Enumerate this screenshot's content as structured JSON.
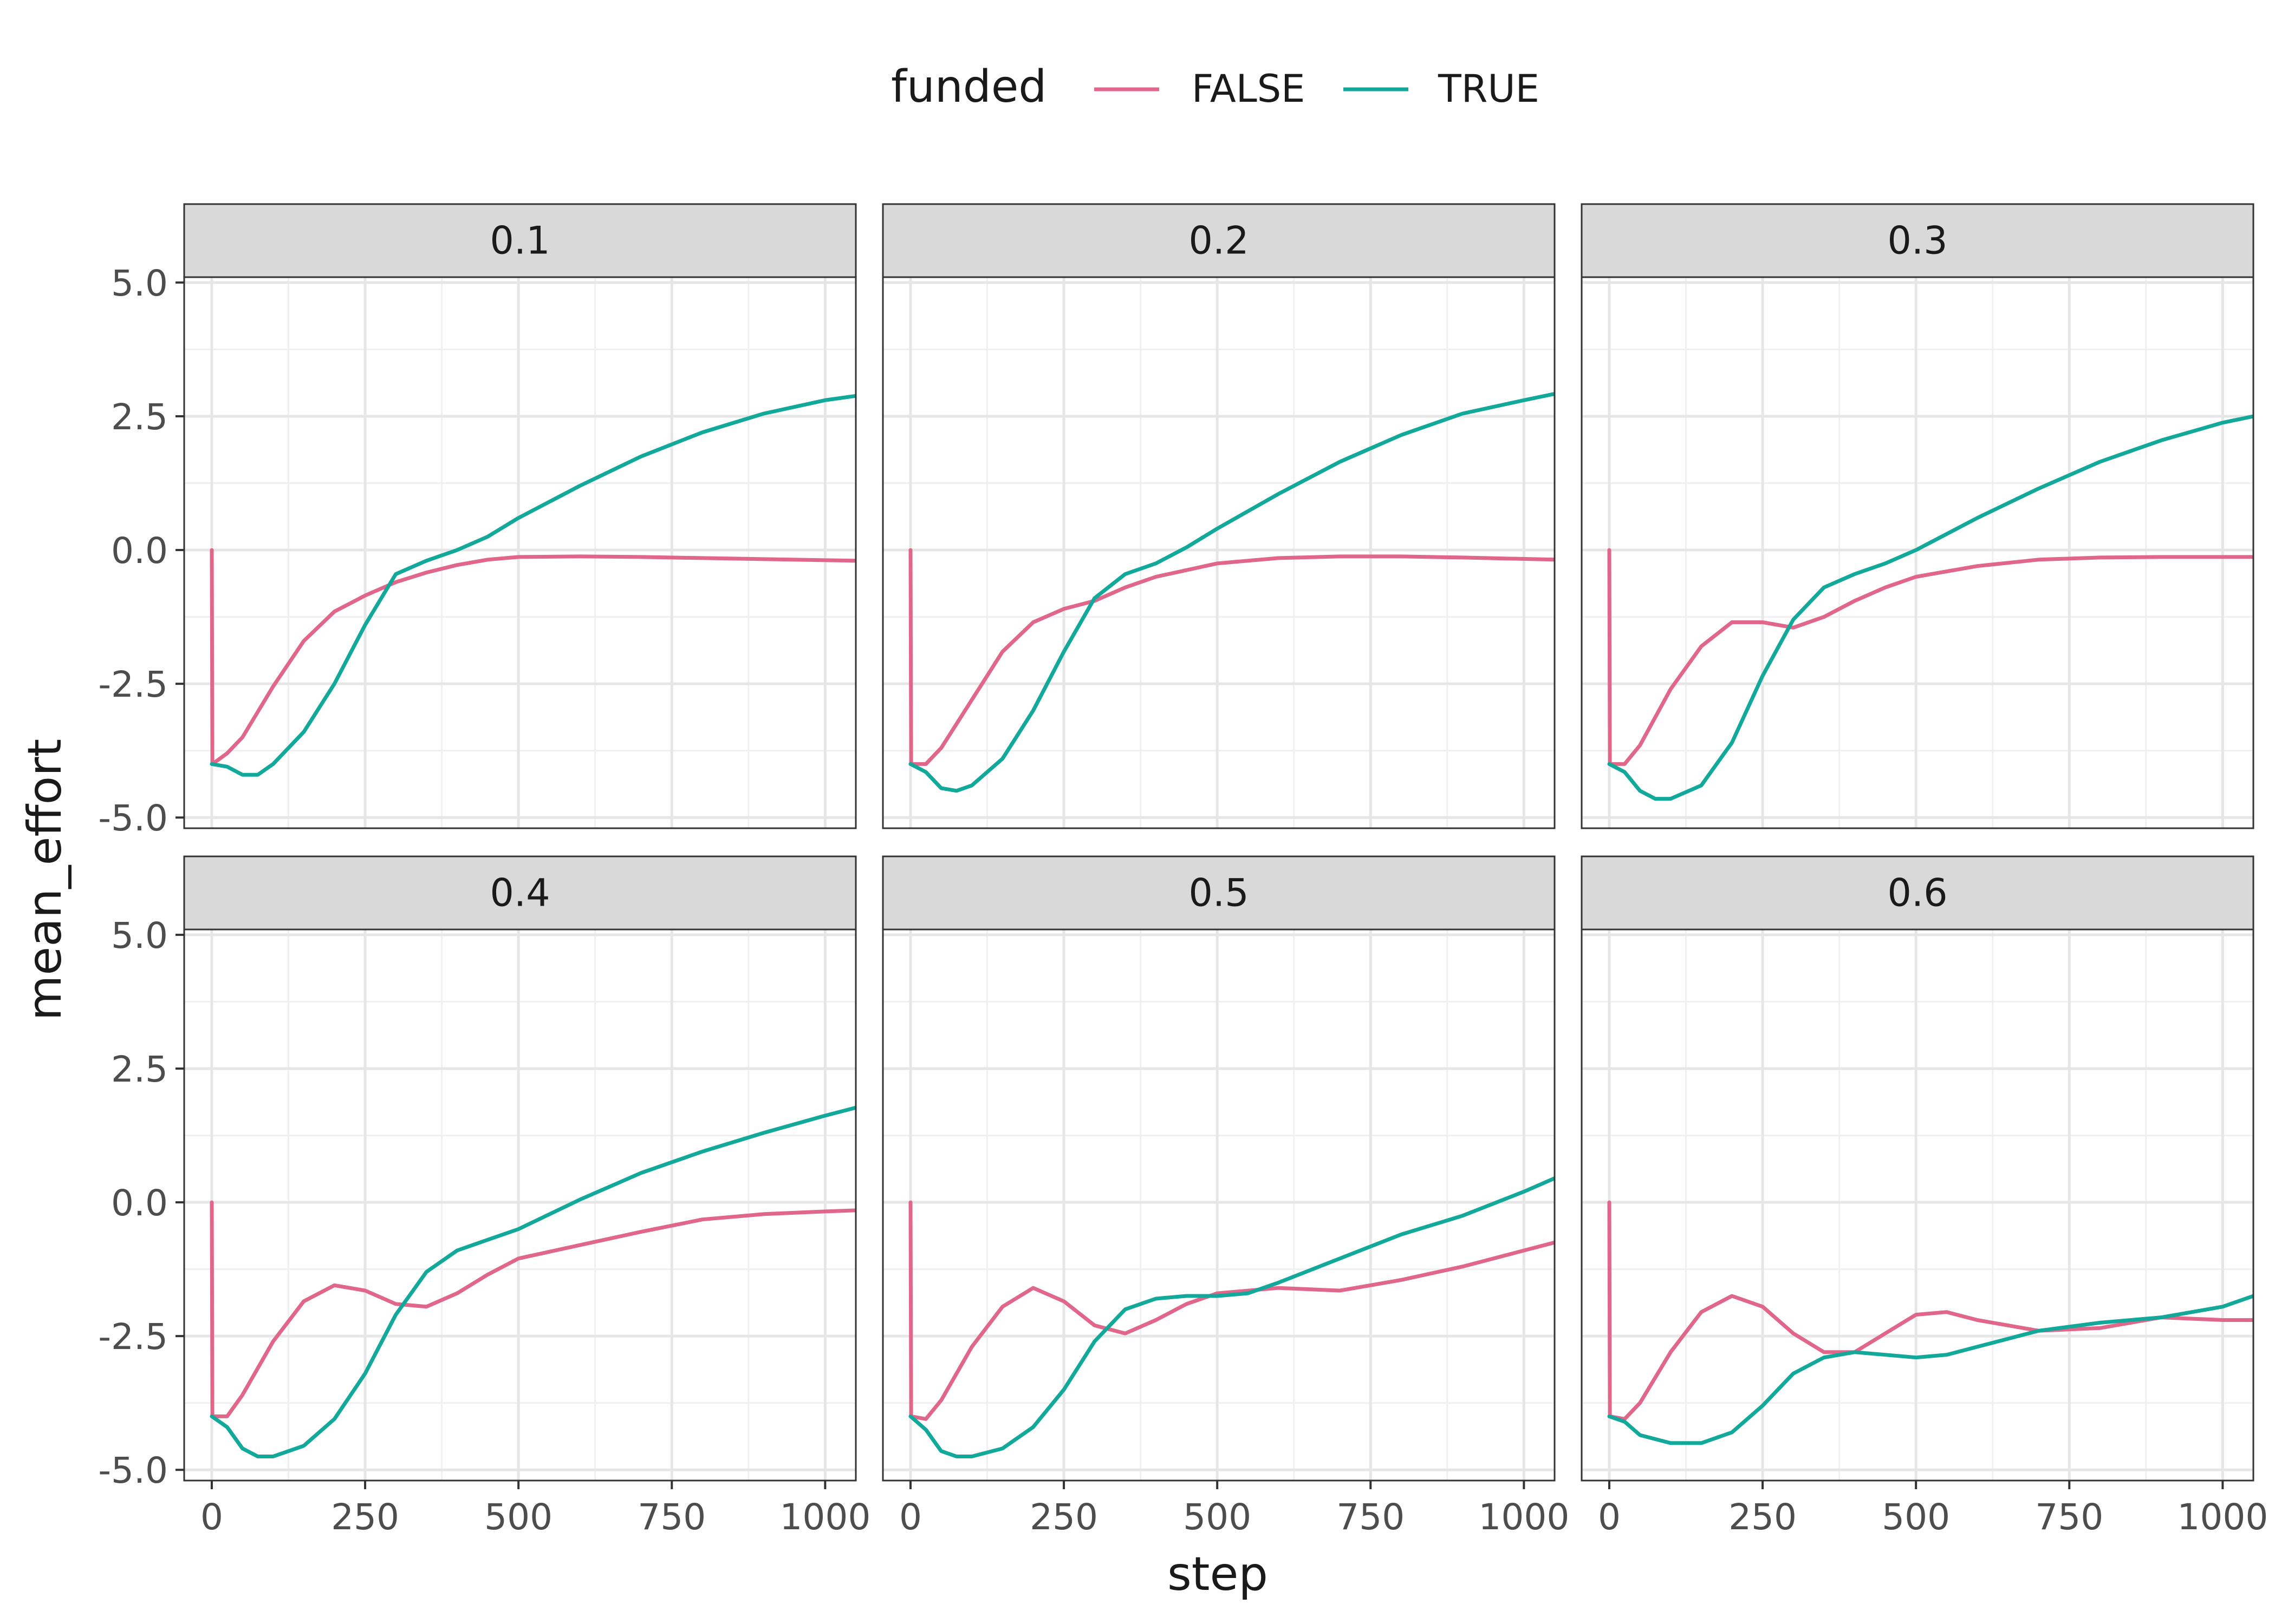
{
  "chart_data": {
    "type": "line",
    "facet_layout": "2 rows x 3 columns",
    "xlabel": "step",
    "ylabel": "mean_effort",
    "xlim": [
      -45,
      1050
    ],
    "ylim": [
      -5.2,
      5.1
    ],
    "x_ticks": [
      0,
      250,
      500,
      750,
      1000
    ],
    "x_tick_labels": [
      "0",
      "250",
      "500",
      "750",
      "1000"
    ],
    "y_ticks": [
      -5.0,
      -2.5,
      0.0,
      2.5,
      5.0
    ],
    "y_tick_labels": [
      "-5.0",
      "-2.5",
      "0.0",
      "2.5",
      "5.0"
    ],
    "grid": true,
    "legend": {
      "title": "funded",
      "position": "top",
      "entries": [
        {
          "label": "FALSE",
          "color": "#E0668A"
        },
        {
          "label": "TRUE",
          "color": "#12A99A"
        }
      ]
    },
    "facets": [
      {
        "label": "0.1",
        "series": [
          {
            "name": "FALSE",
            "color": "#E0668A",
            "points": [
              [
                0,
                0
              ],
              [
                1,
                -4.0
              ],
              [
                25,
                -3.8
              ],
              [
                50,
                -3.5
              ],
              [
                100,
                -2.55
              ],
              [
                150,
                -1.7
              ],
              [
                200,
                -1.15
              ],
              [
                250,
                -0.85
              ],
              [
                300,
                -0.6
              ],
              [
                350,
                -0.42
              ],
              [
                400,
                -0.28
              ],
              [
                450,
                -0.18
              ],
              [
                500,
                -0.13
              ],
              [
                600,
                -0.12
              ],
              [
                700,
                -0.13
              ],
              [
                800,
                -0.15
              ],
              [
                900,
                -0.17
              ],
              [
                1050,
                -0.2
              ]
            ]
          },
          {
            "name": "TRUE",
            "color": "#12A99A",
            "points": [
              [
                0,
                -4.0
              ],
              [
                25,
                -4.05
              ],
              [
                50,
                -4.2
              ],
              [
                75,
                -4.2
              ],
              [
                100,
                -4.0
              ],
              [
                150,
                -3.4
              ],
              [
                200,
                -2.5
              ],
              [
                250,
                -1.4
              ],
              [
                300,
                -0.45
              ],
              [
                350,
                -0.2
              ],
              [
                400,
                0.0
              ],
              [
                450,
                0.25
              ],
              [
                500,
                0.6
              ],
              [
                600,
                1.2
              ],
              [
                700,
                1.75
              ],
              [
                800,
                2.2
              ],
              [
                900,
                2.55
              ],
              [
                1000,
                2.8
              ],
              [
                1050,
                2.88
              ]
            ]
          }
        ]
      },
      {
        "label": "0.2",
        "series": [
          {
            "name": "FALSE",
            "color": "#E0668A",
            "points": [
              [
                0,
                0
              ],
              [
                1,
                -4.0
              ],
              [
                25,
                -4.0
              ],
              [
                50,
                -3.7
              ],
              [
                100,
                -2.8
              ],
              [
                150,
                -1.9
              ],
              [
                200,
                -1.35
              ],
              [
                250,
                -1.1
              ],
              [
                300,
                -0.95
              ],
              [
                350,
                -0.7
              ],
              [
                400,
                -0.5
              ],
              [
                500,
                -0.25
              ],
              [
                600,
                -0.15
              ],
              [
                700,
                -0.12
              ],
              [
                800,
                -0.12
              ],
              [
                900,
                -0.14
              ],
              [
                1050,
                -0.18
              ]
            ]
          },
          {
            "name": "TRUE",
            "color": "#12A99A",
            "points": [
              [
                0,
                -4.0
              ],
              [
                25,
                -4.15
              ],
              [
                50,
                -4.45
              ],
              [
                75,
                -4.5
              ],
              [
                100,
                -4.4
              ],
              [
                150,
                -3.9
              ],
              [
                200,
                -3.0
              ],
              [
                250,
                -1.9
              ],
              [
                300,
                -0.9
              ],
              [
                350,
                -0.45
              ],
              [
                400,
                -0.25
              ],
              [
                450,
                0.05
              ],
              [
                500,
                0.4
              ],
              [
                600,
                1.05
              ],
              [
                700,
                1.65
              ],
              [
                800,
                2.15
              ],
              [
                900,
                2.55
              ],
              [
                1000,
                2.8
              ],
              [
                1050,
                2.92
              ]
            ]
          }
        ]
      },
      {
        "label": "0.3",
        "series": [
          {
            "name": "FALSE",
            "color": "#E0668A",
            "points": [
              [
                0,
                0
              ],
              [
                1,
                -4.0
              ],
              [
                25,
                -4.0
              ],
              [
                50,
                -3.65
              ],
              [
                100,
                -2.6
              ],
              [
                150,
                -1.8
              ],
              [
                200,
                -1.35
              ],
              [
                250,
                -1.35
              ],
              [
                300,
                -1.45
              ],
              [
                350,
                -1.25
              ],
              [
                400,
                -0.95
              ],
              [
                450,
                -0.7
              ],
              [
                500,
                -0.5
              ],
              [
                600,
                -0.3
              ],
              [
                700,
                -0.18
              ],
              [
                800,
                -0.14
              ],
              [
                900,
                -0.13
              ],
              [
                1050,
                -0.13
              ]
            ]
          },
          {
            "name": "TRUE",
            "color": "#12A99A",
            "points": [
              [
                0,
                -4.0
              ],
              [
                25,
                -4.15
              ],
              [
                50,
                -4.5
              ],
              [
                75,
                -4.65
              ],
              [
                100,
                -4.65
              ],
              [
                150,
                -4.4
              ],
              [
                200,
                -3.6
              ],
              [
                250,
                -2.35
              ],
              [
                300,
                -1.3
              ],
              [
                350,
                -0.7
              ],
              [
                400,
                -0.45
              ],
              [
                450,
                -0.25
              ],
              [
                500,
                0.0
              ],
              [
                600,
                0.6
              ],
              [
                700,
                1.15
              ],
              [
                800,
                1.65
              ],
              [
                900,
                2.05
              ],
              [
                1000,
                2.38
              ],
              [
                1050,
                2.5
              ]
            ]
          }
        ]
      },
      {
        "label": "0.4",
        "series": [
          {
            "name": "FALSE",
            "color": "#E0668A",
            "points": [
              [
                0,
                0
              ],
              [
                1,
                -4.0
              ],
              [
                25,
                -4.0
              ],
              [
                50,
                -3.6
              ],
              [
                100,
                -2.6
              ],
              [
                150,
                -1.85
              ],
              [
                200,
                -1.55
              ],
              [
                250,
                -1.65
              ],
              [
                300,
                -1.9
              ],
              [
                350,
                -1.95
              ],
              [
                400,
                -1.7
              ],
              [
                450,
                -1.35
              ],
              [
                500,
                -1.05
              ],
              [
                600,
                -0.8
              ],
              [
                700,
                -0.55
              ],
              [
                800,
                -0.32
              ],
              [
                900,
                -0.22
              ],
              [
                1000,
                -0.17
              ],
              [
                1050,
                -0.15
              ]
            ]
          },
          {
            "name": "TRUE",
            "color": "#12A99A",
            "points": [
              [
                0,
                -4.0
              ],
              [
                25,
                -4.2
              ],
              [
                50,
                -4.6
              ],
              [
                75,
                -4.75
              ],
              [
                100,
                -4.75
              ],
              [
                150,
                -4.55
              ],
              [
                200,
                -4.05
              ],
              [
                250,
                -3.2
              ],
              [
                300,
                -2.1
              ],
              [
                350,
                -1.3
              ],
              [
                400,
                -0.9
              ],
              [
                450,
                -0.7
              ],
              [
                500,
                -0.5
              ],
              [
                600,
                0.05
              ],
              [
                700,
                0.55
              ],
              [
                800,
                0.95
              ],
              [
                900,
                1.3
              ],
              [
                1000,
                1.62
              ],
              [
                1050,
                1.77
              ]
            ]
          }
        ]
      },
      {
        "label": "0.5",
        "series": [
          {
            "name": "FALSE",
            "color": "#E0668A",
            "points": [
              [
                0,
                0
              ],
              [
                1,
                -4.0
              ],
              [
                25,
                -4.05
              ],
              [
                50,
                -3.7
              ],
              [
                100,
                -2.7
              ],
              [
                150,
                -1.95
              ],
              [
                200,
                -1.6
              ],
              [
                250,
                -1.85
              ],
              [
                300,
                -2.3
              ],
              [
                350,
                -2.45
              ],
              [
                400,
                -2.2
              ],
              [
                450,
                -1.9
              ],
              [
                500,
                -1.7
              ],
              [
                600,
                -1.6
              ],
              [
                700,
                -1.65
              ],
              [
                800,
                -1.45
              ],
              [
                900,
                -1.2
              ],
              [
                1000,
                -0.9
              ],
              [
                1050,
                -0.75
              ]
            ]
          },
          {
            "name": "TRUE",
            "color": "#12A99A",
            "points": [
              [
                0,
                -4.0
              ],
              [
                25,
                -4.25
              ],
              [
                50,
                -4.65
              ],
              [
                75,
                -4.75
              ],
              [
                100,
                -4.75
              ],
              [
                150,
                -4.6
              ],
              [
                200,
                -4.2
              ],
              [
                250,
                -3.5
              ],
              [
                300,
                -2.6
              ],
              [
                350,
                -2.0
              ],
              [
                400,
                -1.8
              ],
              [
                450,
                -1.75
              ],
              [
                500,
                -1.75
              ],
              [
                550,
                -1.7
              ],
              [
                600,
                -1.5
              ],
              [
                700,
                -1.05
              ],
              [
                800,
                -0.6
              ],
              [
                900,
                -0.25
              ],
              [
                1000,
                0.2
              ],
              [
                1050,
                0.45
              ]
            ]
          }
        ]
      },
      {
        "label": "0.6",
        "series": [
          {
            "name": "FALSE",
            "color": "#E0668A",
            "points": [
              [
                0,
                0
              ],
              [
                1,
                -4.0
              ],
              [
                25,
                -4.05
              ],
              [
                50,
                -3.75
              ],
              [
                100,
                -2.8
              ],
              [
                150,
                -2.05
              ],
              [
                200,
                -1.75
              ],
              [
                250,
                -1.95
              ],
              [
                300,
                -2.45
              ],
              [
                350,
                -2.8
              ],
              [
                400,
                -2.8
              ],
              [
                450,
                -2.45
              ],
              [
                500,
                -2.1
              ],
              [
                550,
                -2.05
              ],
              [
                600,
                -2.2
              ],
              [
                700,
                -2.4
              ],
              [
                800,
                -2.35
              ],
              [
                900,
                -2.15
              ],
              [
                1000,
                -2.2
              ],
              [
                1050,
                -2.2
              ]
            ]
          },
          {
            "name": "TRUE",
            "color": "#12A99A",
            "points": [
              [
                0,
                -4.0
              ],
              [
                25,
                -4.1
              ],
              [
                50,
                -4.35
              ],
              [
                100,
                -4.5
              ],
              [
                150,
                -4.5
              ],
              [
                200,
                -4.3
              ],
              [
                250,
                -3.8
              ],
              [
                300,
                -3.2
              ],
              [
                350,
                -2.9
              ],
              [
                400,
                -2.8
              ],
              [
                450,
                -2.85
              ],
              [
                500,
                -2.9
              ],
              [
                550,
                -2.85
              ],
              [
                600,
                -2.7
              ],
              [
                700,
                -2.4
              ],
              [
                800,
                -2.25
              ],
              [
                900,
                -2.15
              ],
              [
                1000,
                -1.95
              ],
              [
                1050,
                -1.75
              ]
            ]
          }
        ]
      }
    ]
  }
}
